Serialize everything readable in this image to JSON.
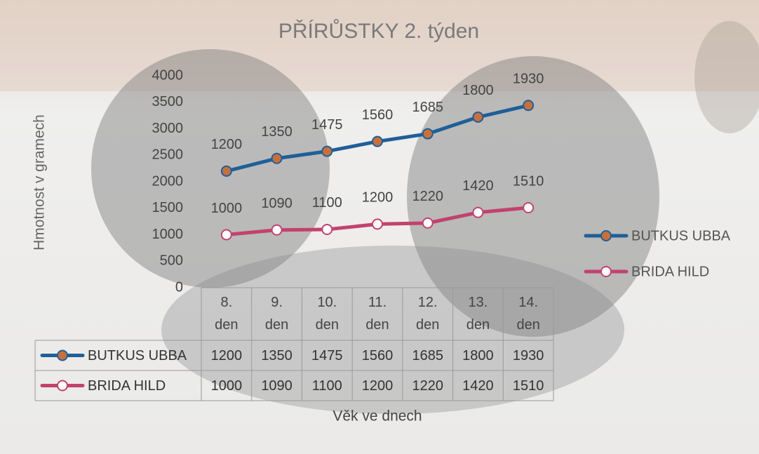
{
  "chart_data": {
    "type": "line",
    "stacked": true,
    "title": "PŘÍRŮSTKY 2. týden",
    "y_axis_title": "Hmotnost v gramech",
    "x_axis_title": "Věk ve dnech",
    "categories": [
      "8. den",
      "9. den",
      "10. den",
      "11. den",
      "12. den",
      "13. den",
      "14. den"
    ],
    "series": [
      {
        "name": "BUTKUS UBBA",
        "color": "#1f5f98",
        "marker_color": "#c8703c",
        "values": [
          1200,
          1350,
          1475,
          1560,
          1685,
          1800,
          1930
        ]
      },
      {
        "name": "BRIDA HILD",
        "color": "#c2426e",
        "marker_color": "#ffffff",
        "values": [
          1000,
          1090,
          1100,
          1200,
          1220,
          1420,
          1510
        ]
      }
    ],
    "ylim": [
      0,
      4000
    ],
    "yticks": [
      0,
      500,
      1000,
      1500,
      2000,
      2500,
      3000,
      3500,
      4000
    ],
    "grid": false,
    "legend": "right",
    "data_table": true
  }
}
